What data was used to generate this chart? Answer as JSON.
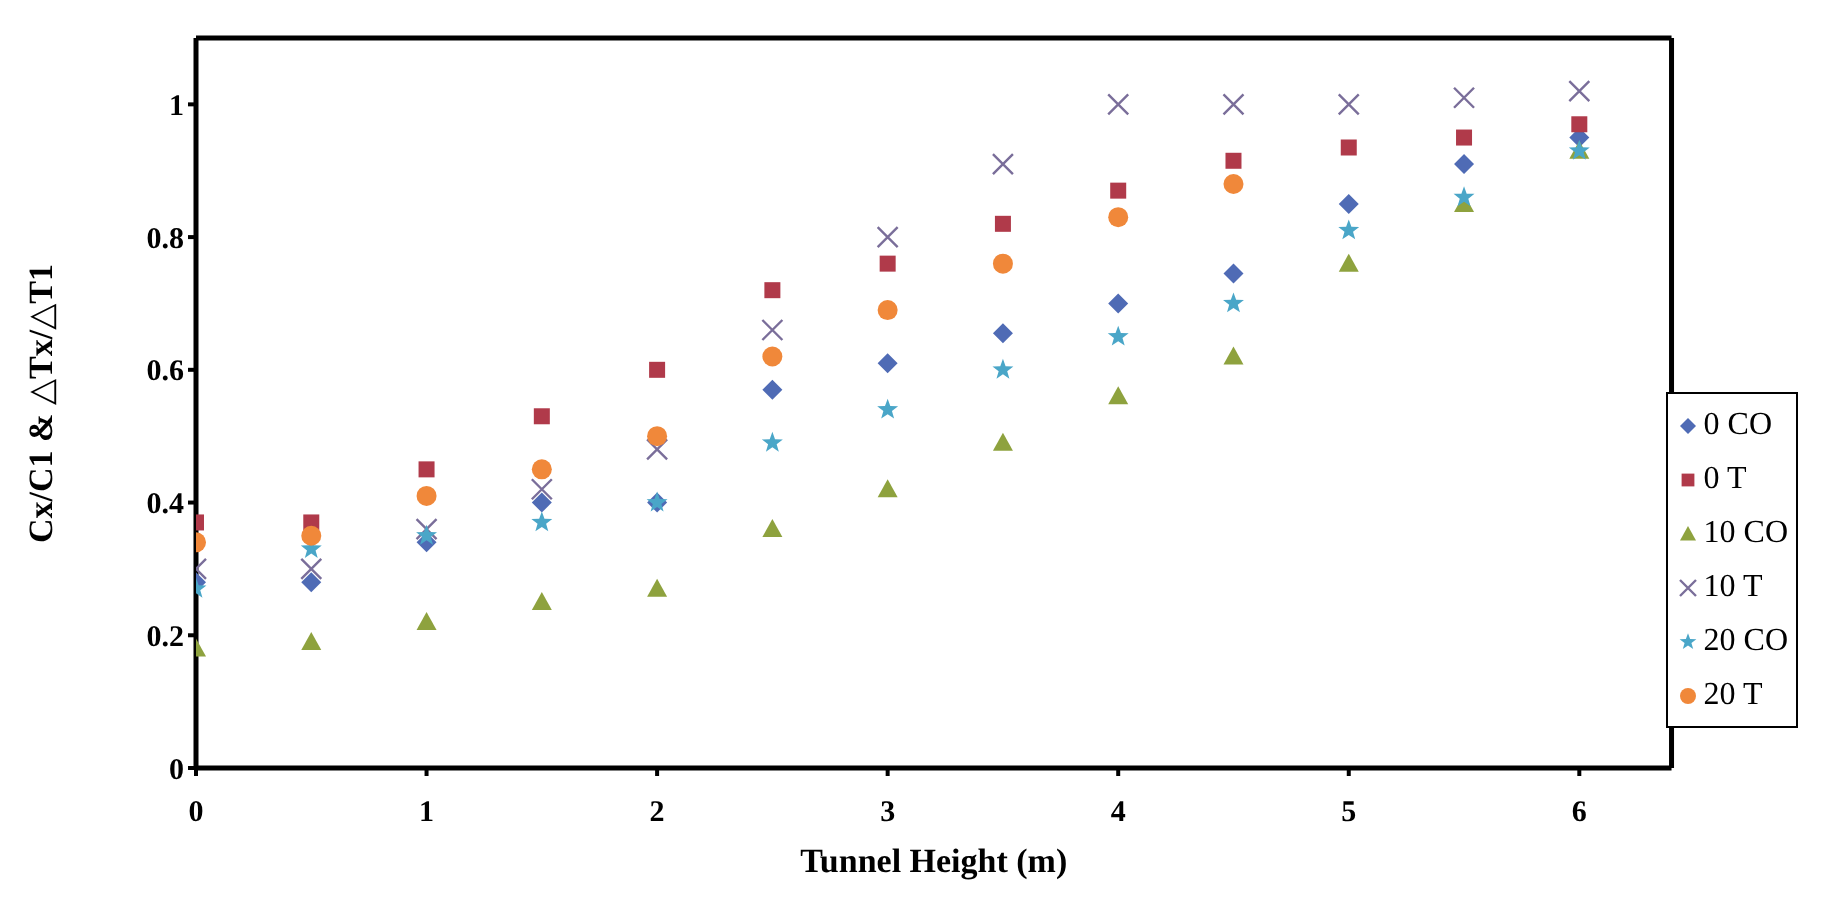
{
  "chart_data": {
    "type": "scatter",
    "xlabel": "Tunnel Height (m)",
    "ylabel": "Cx/C1 & △Tx/△T1",
    "x": [
      0,
      0.5,
      1,
      1.5,
      2,
      2.5,
      3,
      3.5,
      4,
      4.5,
      5,
      5.5,
      6
    ],
    "series": [
      {
        "name": "0 CO",
        "color": "#4f6bb5",
        "marker": "diamond",
        "values": [
          0.28,
          0.28,
          0.34,
          0.4,
          0.4,
          0.57,
          0.61,
          0.655,
          0.7,
          0.745,
          0.85,
          0.91,
          0.95
        ]
      },
      {
        "name": "0 T",
        "color": "#b03a4a",
        "marker": "square",
        "values": [
          0.37,
          0.37,
          0.45,
          0.53,
          0.6,
          0.72,
          0.76,
          0.82,
          0.87,
          0.915,
          0.935,
          0.95,
          0.97
        ]
      },
      {
        "name": "10 CO",
        "color": "#8ea23e",
        "marker": "triangle",
        "values": [
          0.18,
          0.19,
          0.22,
          0.25,
          0.27,
          0.36,
          0.42,
          0.49,
          0.56,
          0.62,
          0.76,
          0.85,
          0.93
        ]
      },
      {
        "name": "10 T",
        "color": "#7a6e9a",
        "marker": "cross",
        "values": [
          0.3,
          0.3,
          0.36,
          0.42,
          0.48,
          0.66,
          0.8,
          0.91,
          1.0,
          1.0,
          1.0,
          1.01,
          1.02
        ]
      },
      {
        "name": "20 CO",
        "color": "#4aa6c8",
        "marker": "star",
        "values": [
          0.27,
          0.33,
          0.35,
          0.37,
          0.4,
          0.49,
          0.54,
          0.6,
          0.65,
          0.7,
          0.81,
          0.86,
          0.93
        ]
      },
      {
        "name": "20 T",
        "color": "#f0883a",
        "marker": "circle",
        "values": [
          0.34,
          0.35,
          0.41,
          0.45,
          0.5,
          0.62,
          0.69,
          0.76,
          0.83,
          0.88,
          null,
          null,
          null
        ]
      }
    ],
    "xlim": [
      0,
      6.4
    ],
    "xticks": [
      0,
      1,
      2,
      3,
      4,
      5,
      6
    ],
    "ylim": [
      0,
      1.1
    ],
    "yticks": [
      0,
      0.2,
      0.4,
      0.6,
      0.8,
      1
    ],
    "grid": false,
    "legend": "right"
  }
}
